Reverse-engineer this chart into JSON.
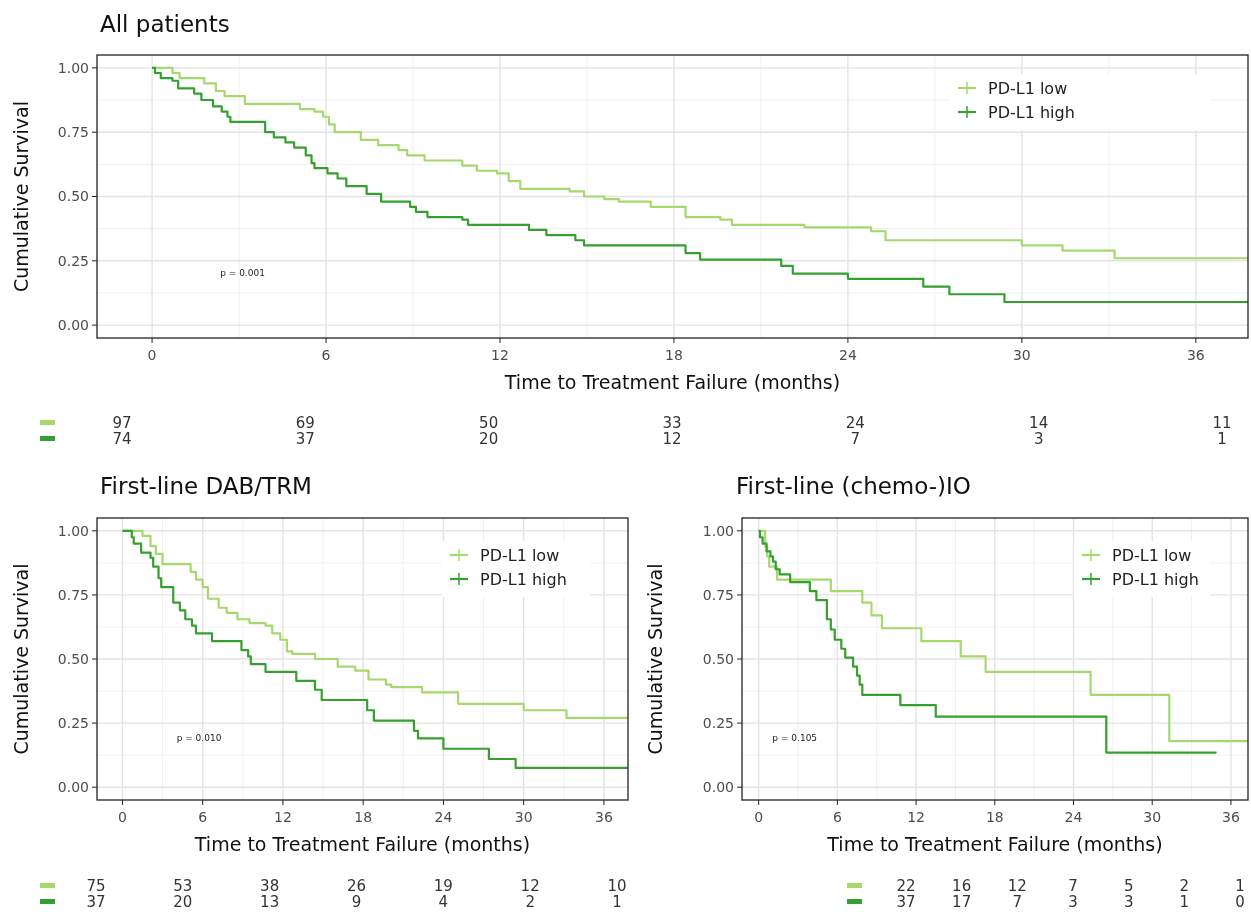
{
  "chart_data": [
    {
      "type": "step",
      "title": "All patients",
      "xlabel": "Time to Treatment Failure (months)",
      "ylabel": "Cumulative Survival",
      "xlim": [
        -1.9,
        37.8
      ],
      "ylim": [
        -0.05,
        1.05
      ],
      "xticks": [
        0,
        6,
        12,
        18,
        24,
        30,
        36
      ],
      "yticks": [
        {
          "value": 0,
          "label": "0.00"
        },
        {
          "value": 0.25,
          "label": "0.25"
        },
        {
          "value": 0.5,
          "label": "0.50"
        },
        {
          "value": 0.75,
          "label": "0.75"
        },
        {
          "value": 1,
          "label": "1.00"
        }
      ],
      "grid": true,
      "legend": "top right",
      "annotations": [
        "p = 0.001"
      ],
      "series": [
        {
          "name": "PD-L1 low",
          "color": "#a6d86e",
          "x": [
            0,
            0.7,
            0.95,
            1.8,
            2.2,
            2.5,
            3.2,
            5.1,
            5.6,
            5.9,
            6.1,
            6.3,
            7.2,
            7.8,
            8.5,
            8.8,
            9.4,
            10.7,
            11.2,
            11.9,
            12.3,
            12.7,
            14.4,
            14.9,
            15.6,
            16.1,
            17.2,
            18.4,
            19.6,
            20.0,
            22.5,
            24.8,
            25.3,
            30.0,
            31.4,
            33.2,
            37.8
          ],
          "values": [
            1,
            0.98,
            0.96,
            0.94,
            0.91,
            0.89,
            0.86,
            0.84,
            0.83,
            0.81,
            0.78,
            0.75,
            0.72,
            0.7,
            0.68,
            0.66,
            0.64,
            0.62,
            0.6,
            0.59,
            0.56,
            0.53,
            0.52,
            0.5,
            0.49,
            0.48,
            0.46,
            0.42,
            0.41,
            0.39,
            0.38,
            0.365,
            0.33,
            0.31,
            0.29,
            0.26,
            0.26
          ]
        },
        {
          "name": "PD-L1 high",
          "color": "#35a02f",
          "x": [
            0,
            0.1,
            0.3,
            0.7,
            0.9,
            1.45,
            1.7,
            2.1,
            2.4,
            2.6,
            2.7,
            3.9,
            4.2,
            4.6,
            4.9,
            5.3,
            5.5,
            5.6,
            6.05,
            6.4,
            6.7,
            7.4,
            7.9,
            8.9,
            9.1,
            9.5,
            10.7,
            10.9,
            13.0,
            13.6,
            14.6,
            14.9,
            18.4,
            18.9,
            21.7,
            22.1,
            24.0,
            26.6,
            27.5,
            29.4,
            37.8
          ],
          "values": [
            1,
            0.98,
            0.96,
            0.95,
            0.92,
            0.9,
            0.875,
            0.85,
            0.83,
            0.81,
            0.79,
            0.75,
            0.73,
            0.71,
            0.69,
            0.66,
            0.63,
            0.61,
            0.59,
            0.57,
            0.54,
            0.51,
            0.48,
            0.46,
            0.44,
            0.42,
            0.41,
            0.39,
            0.37,
            0.35,
            0.33,
            0.31,
            0.28,
            0.255,
            0.23,
            0.2,
            0.18,
            0.15,
            0.12,
            0.09,
            0.09
          ]
        }
      ]
    },
    {
      "type": "other",
      "annotations": [
        "97",
        "69",
        "50",
        "33",
        "24",
        "14",
        "11",
        "74",
        "37",
        "20",
        "12",
        "7",
        "3",
        "1"
      ]
    },
    {
      "type": "step",
      "title": "First-line DAB/TRM",
      "xlabel": "Time to Treatment Failure (months)",
      "ylabel": "Cumulative Survival",
      "xlim": [
        -1.9,
        37.8
      ],
      "ylim": [
        -0.05,
        1.05
      ],
      "xticks": [
        0,
        6,
        12,
        18,
        24,
        30,
        36
      ],
      "yticks": [
        {
          "value": 0,
          "label": "0.00"
        },
        {
          "value": 0.25,
          "label": "0.25"
        },
        {
          "value": 0.5,
          "label": "0.50"
        },
        {
          "value": 0.75,
          "label": "0.75"
        },
        {
          "value": 1,
          "label": "1.00"
        }
      ],
      "grid": true,
      "legend": "top right",
      "annotations": [
        "p = 0.010"
      ],
      "series": [
        {
          "name": "PD-L1 low",
          "color": "#a6d86e",
          "x": [
            0,
            1.5,
            2.1,
            2.5,
            3.0,
            5.1,
            5.5,
            6.0,
            6.4,
            7.2,
            7.8,
            8.6,
            9.5,
            10.7,
            11.2,
            11.8,
            12.3,
            12.7,
            14.4,
            16.1,
            17.4,
            18.4,
            19.7,
            20.1,
            22.4,
            25.1,
            30.0,
            33.2,
            37.8
          ],
          "values": [
            1,
            0.98,
            0.94,
            0.91,
            0.87,
            0.84,
            0.81,
            0.78,
            0.735,
            0.7,
            0.68,
            0.655,
            0.64,
            0.63,
            0.6,
            0.575,
            0.53,
            0.52,
            0.5,
            0.47,
            0.455,
            0.42,
            0.4,
            0.39,
            0.37,
            0.325,
            0.3,
            0.27,
            0.27
          ]
        },
        {
          "name": "PD-L1 high",
          "color": "#35a02f",
          "x": [
            0,
            0.7,
            0.85,
            1.4,
            2.1,
            2.3,
            2.7,
            2.9,
            3.8,
            4.3,
            4.7,
            5.2,
            5.5,
            6.7,
            8.9,
            9.4,
            9.6,
            10.7,
            13.0,
            14.4,
            14.9,
            18.3,
            18.8,
            21.8,
            22.1,
            24.0,
            27.4,
            29.4,
            37.8
          ],
          "values": [
            1,
            0.975,
            0.95,
            0.915,
            0.895,
            0.86,
            0.815,
            0.78,
            0.72,
            0.69,
            0.655,
            0.63,
            0.6,
            0.57,
            0.535,
            0.51,
            0.48,
            0.45,
            0.415,
            0.38,
            0.34,
            0.3,
            0.26,
            0.22,
            0.19,
            0.15,
            0.11,
            0.075,
            0.075
          ]
        }
      ]
    },
    {
      "type": "other",
      "annotations": [
        "75",
        "53",
        "38",
        "26",
        "19",
        "12",
        "10",
        "37",
        "20",
        "13",
        "9",
        "4",
        "2",
        "1"
      ]
    },
    {
      "type": "step",
      "title": "First-line (chemo-)IO",
      "xlabel": "Time to Treatment Failure (months)",
      "ylabel": "Cumulative Survival",
      "xlim": [
        -1.27,
        37.3
      ],
      "ylim": [
        -0.05,
        1.05
      ],
      "xticks": [
        0,
        6,
        12,
        18,
        24,
        30,
        36
      ],
      "yticks": [
        {
          "value": 0,
          "label": "0.00"
        },
        {
          "value": 0.25,
          "label": "0.25"
        },
        {
          "value": 0.5,
          "label": "0.50"
        },
        {
          "value": 0.75,
          "label": "0.75"
        },
        {
          "value": 1,
          "label": "1.00"
        }
      ],
      "grid": true,
      "legend": "top right",
      "annotations": [
        "p = 0.105"
      ],
      "series": [
        {
          "name": "PD-L1 low",
          "color": "#a6d86e",
          "x": [
            0,
            0.5,
            0.65,
            0.8,
            1.4,
            5.5,
            7.9,
            8.6,
            9.4,
            12.4,
            15.4,
            17.3,
            25.3,
            31.3,
            37.3
          ],
          "values": [
            1,
            0.94,
            0.9,
            0.86,
            0.81,
            0.765,
            0.72,
            0.67,
            0.62,
            0.57,
            0.51,
            0.45,
            0.36,
            0.18,
            0.18
          ]
        },
        {
          "name": "PD-L1 high",
          "color": "#35a02f",
          "x": [
            0,
            0.1,
            0.3,
            0.6,
            0.9,
            1.1,
            1.3,
            1.6,
            2.4,
            3.9,
            4.4,
            5.2,
            5.5,
            5.8,
            6.3,
            6.6,
            7.2,
            7.5,
            7.7,
            7.9,
            10.8,
            13.5,
            26.5,
            34.9
          ],
          "values": [
            1,
            0.975,
            0.95,
            0.92,
            0.9,
            0.88,
            0.85,
            0.83,
            0.8,
            0.765,
            0.73,
            0.655,
            0.615,
            0.575,
            0.54,
            0.505,
            0.47,
            0.435,
            0.4,
            0.36,
            0.32,
            0.275,
            0.135,
            0.135
          ]
        }
      ]
    },
    {
      "type": "other",
      "annotations": [
        "22",
        "16",
        "12",
        "7",
        "5",
        "2",
        "1",
        "37",
        "17",
        "7",
        "3",
        "3",
        "1",
        "0"
      ]
    }
  ]
}
